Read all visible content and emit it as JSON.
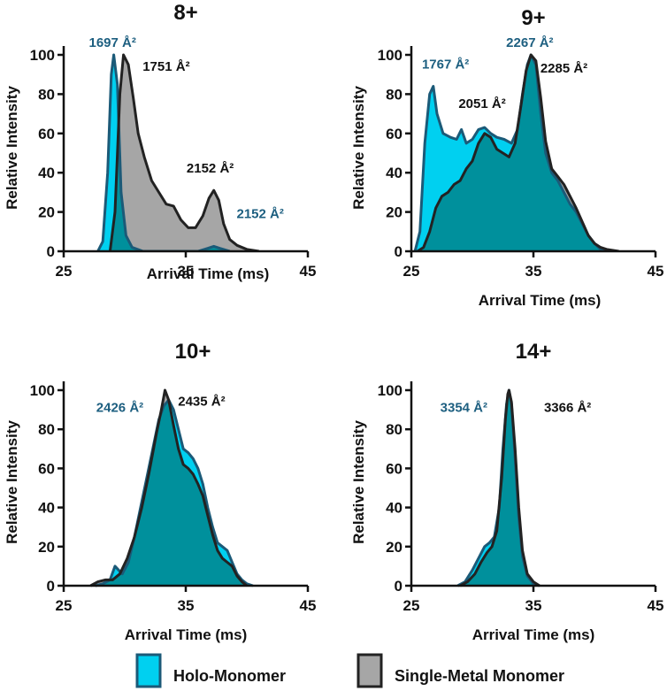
{
  "colors": {
    "holo_fill": "#00d0f0",
    "holo_stroke": "#1b5a78",
    "metal_fill": "#a6a6a6",
    "metal_stroke": "#222222",
    "overlap_fill": "#00909c",
    "holo_text": "#1d5f80",
    "metal_text": "#111111"
  },
  "legend": [
    {
      "label": "Holo-Monomer",
      "series": "holo"
    },
    {
      "label": "Single-Metal Monomer",
      "series": "metal"
    }
  ],
  "chart_data": [
    {
      "type": "area",
      "title": "8+",
      "xlabel": "Arrival Time (ms)",
      "ylabel": "Relative Intensity",
      "xlim": [
        25,
        45
      ],
      "ylim": [
        0,
        100
      ],
      "xticks": [
        25,
        35,
        45
      ],
      "yticks": [
        0,
        20,
        40,
        60,
        80,
        100
      ],
      "series": [
        {
          "name": "Holo-Monomer",
          "key": "holo",
          "points": [
            [
              27.8,
              0
            ],
            [
              28.2,
              5
            ],
            [
              28.6,
              40
            ],
            [
              28.9,
              90
            ],
            [
              29.1,
              100
            ],
            [
              29.4,
              85
            ],
            [
              29.7,
              30
            ],
            [
              30.1,
              8
            ],
            [
              30.6,
              2
            ],
            [
              31.5,
              0
            ],
            [
              36.0,
              0
            ],
            [
              36.8,
              1.5
            ],
            [
              37.3,
              2.5
            ],
            [
              37.8,
              1.5
            ],
            [
              38.6,
              0
            ]
          ]
        },
        {
          "name": "Single-Metal Monomer",
          "key": "metal",
          "points": [
            [
              28.8,
              0
            ],
            [
              29.2,
              20
            ],
            [
              29.6,
              80
            ],
            [
              29.9,
              100
            ],
            [
              30.3,
              95
            ],
            [
              30.7,
              78
            ],
            [
              31.1,
              60
            ],
            [
              31.6,
              48
            ],
            [
              32.2,
              36
            ],
            [
              32.8,
              30
            ],
            [
              33.4,
              24
            ],
            [
              34.0,
              23
            ],
            [
              34.6,
              16
            ],
            [
              35.2,
              12
            ],
            [
              35.8,
              12
            ],
            [
              36.4,
              18
            ],
            [
              36.9,
              27
            ],
            [
              37.3,
              31
            ],
            [
              37.7,
              26
            ],
            [
              38.1,
              14
            ],
            [
              38.6,
              6
            ],
            [
              39.2,
              3
            ],
            [
              40.0,
              1
            ],
            [
              41.0,
              0
            ]
          ]
        }
      ],
      "annotations": [
        {
          "text": "1697 Å²",
          "series": "holo",
          "x": 29.0,
          "y": 104
        },
        {
          "text": "1751 Å²",
          "series": "metal",
          "x": 33.4,
          "y": 92
        },
        {
          "text": "2152 Å²",
          "series": "metal",
          "x": 37.0,
          "y": 40
        },
        {
          "text": "2152 Å²",
          "series": "holo",
          "x": 41.1,
          "y": 17
        }
      ]
    },
    {
      "type": "area",
      "title": "9+",
      "xlabel": "Arrival Time (ms)",
      "ylabel": "Relative Intensity",
      "xlim": [
        25,
        45
      ],
      "ylim": [
        0,
        100
      ],
      "xticks": [
        25,
        35,
        45
      ],
      "yticks": [
        0,
        20,
        40,
        60,
        80,
        100
      ],
      "series": [
        {
          "name": "Holo-Monomer",
          "key": "holo",
          "points": [
            [
              25.3,
              0
            ],
            [
              25.7,
              10
            ],
            [
              26.1,
              55
            ],
            [
              26.5,
              80
            ],
            [
              26.8,
              84
            ],
            [
              27.1,
              70
            ],
            [
              27.6,
              60
            ],
            [
              28.2,
              58
            ],
            [
              28.7,
              57
            ],
            [
              29.1,
              62
            ],
            [
              29.5,
              55
            ],
            [
              30.0,
              57
            ],
            [
              30.5,
              62
            ],
            [
              31.0,
              63
            ],
            [
              31.5,
              60
            ],
            [
              32.0,
              58
            ],
            [
              32.6,
              57
            ],
            [
              33.2,
              55
            ],
            [
              33.7,
              62
            ],
            [
              34.1,
              80
            ],
            [
              34.5,
              95
            ],
            [
              34.8,
              100
            ],
            [
              35.2,
              95
            ],
            [
              35.6,
              70
            ],
            [
              36.0,
              50
            ],
            [
              36.5,
              40
            ],
            [
              37.0,
              36
            ],
            [
              37.5,
              30
            ],
            [
              38.0,
              24
            ],
            [
              38.5,
              20
            ],
            [
              39.0,
              14
            ],
            [
              39.5,
              8
            ],
            [
              40.0,
              4
            ],
            [
              40.5,
              1
            ],
            [
              41.0,
              0
            ]
          ]
        },
        {
          "name": "Single-Metal Monomer",
          "key": "metal",
          "points": [
            [
              25.5,
              0
            ],
            [
              26.0,
              2
            ],
            [
              26.5,
              10
            ],
            [
              27.0,
              22
            ],
            [
              27.5,
              28
            ],
            [
              28.0,
              30
            ],
            [
              28.5,
              34
            ],
            [
              29.0,
              36
            ],
            [
              29.5,
              42
            ],
            [
              30.0,
              46
            ],
            [
              30.5,
              55
            ],
            [
              31.0,
              60
            ],
            [
              31.5,
              58
            ],
            [
              32.0,
              52
            ],
            [
              32.5,
              50
            ],
            [
              33.0,
              48
            ],
            [
              33.5,
              55
            ],
            [
              34.0,
              75
            ],
            [
              34.4,
              92
            ],
            [
              34.8,
              100
            ],
            [
              35.2,
              97
            ],
            [
              35.6,
              78
            ],
            [
              36.0,
              56
            ],
            [
              36.5,
              42
            ],
            [
              37.0,
              38
            ],
            [
              37.5,
              34
            ],
            [
              38.0,
              28
            ],
            [
              38.5,
              22
            ],
            [
              39.0,
              15
            ],
            [
              39.5,
              8
            ],
            [
              40.0,
              4
            ],
            [
              40.5,
              2
            ],
            [
              41.0,
              1
            ],
            [
              42.0,
              0
            ]
          ]
        }
      ],
      "annotations": [
        {
          "text": "1767 Å²",
          "series": "holo",
          "x": 27.8,
          "y": 93
        },
        {
          "text": "2267 Å²",
          "series": "holo",
          "x": 34.7,
          "y": 104
        },
        {
          "text": "2285 Å²",
          "series": "metal",
          "x": 37.5,
          "y": 91
        },
        {
          "text": "2051 Å²",
          "series": "metal",
          "x": 30.8,
          "y": 73
        }
      ]
    },
    {
      "type": "area",
      "title": "10+",
      "xlabel": "Arrival Time (ms)",
      "ylabel": "Relative Intensity",
      "xlim": [
        25,
        45
      ],
      "ylim": [
        0,
        100
      ],
      "xticks": [
        25,
        35,
        45
      ],
      "yticks": [
        0,
        20,
        40,
        60,
        80,
        100
      ],
      "series": [
        {
          "name": "Holo-Monomer",
          "key": "holo",
          "points": [
            [
              27.6,
              0
            ],
            [
              28.2,
              1
            ],
            [
              28.8,
              3
            ],
            [
              29.2,
              10
            ],
            [
              29.5,
              8
            ],
            [
              29.8,
              6
            ],
            [
              30.3,
              12
            ],
            [
              30.8,
              25
            ],
            [
              31.3,
              40
            ],
            [
              31.8,
              55
            ],
            [
              32.3,
              70
            ],
            [
              32.8,
              85
            ],
            [
              33.2,
              92
            ],
            [
              33.6,
              95
            ],
            [
              34.0,
              90
            ],
            [
              34.4,
              80
            ],
            [
              34.8,
              70
            ],
            [
              35.2,
              68
            ],
            [
              35.6,
              65
            ],
            [
              36.0,
              60
            ],
            [
              36.4,
              52
            ],
            [
              36.8,
              40
            ],
            [
              37.2,
              30
            ],
            [
              37.6,
              22
            ],
            [
              38.0,
              20
            ],
            [
              38.4,
              18
            ],
            [
              38.8,
              12
            ],
            [
              39.2,
              6
            ],
            [
              39.6,
              3
            ],
            [
              40.0,
              1
            ],
            [
              40.5,
              0
            ]
          ]
        },
        {
          "name": "Single-Metal Monomer",
          "key": "metal",
          "points": [
            [
              27.2,
              0
            ],
            [
              27.8,
              2
            ],
            [
              28.4,
              3
            ],
            [
              29.0,
              3
            ],
            [
              29.6,
              6
            ],
            [
              30.2,
              14
            ],
            [
              30.8,
              25
            ],
            [
              31.4,
              40
            ],
            [
              32.0,
              58
            ],
            [
              32.6,
              78
            ],
            [
              33.0,
              90
            ],
            [
              33.3,
              100
            ],
            [
              33.6,
              95
            ],
            [
              34.0,
              82
            ],
            [
              34.4,
              70
            ],
            [
              34.8,
              62
            ],
            [
              35.2,
              60
            ],
            [
              35.6,
              57
            ],
            [
              36.0,
              52
            ],
            [
              36.4,
              46
            ],
            [
              36.8,
              36
            ],
            [
              37.2,
              26
            ],
            [
              37.6,
              18
            ],
            [
              38.0,
              14
            ],
            [
              38.4,
              12
            ],
            [
              38.8,
              10
            ],
            [
              39.2,
              5
            ],
            [
              39.6,
              2
            ],
            [
              40.0,
              0
            ]
          ]
        }
      ],
      "annotations": [
        {
          "text": "2426 Å²",
          "series": "holo",
          "x": 29.6,
          "y": 89
        },
        {
          "text": "2435 Å²",
          "series": "metal",
          "x": 36.3,
          "y": 92
        }
      ]
    },
    {
      "type": "area",
      "title": "14+",
      "xlabel": "Arrival Time (ms)",
      "ylabel": "Relative Intensity",
      "xlim": [
        25,
        45
      ],
      "ylim": [
        0,
        100
      ],
      "xticks": [
        25,
        35,
        45
      ],
      "yticks": [
        0,
        20,
        40,
        60,
        80,
        100
      ],
      "series": [
        {
          "name": "Holo-Monomer",
          "key": "holo",
          "points": [
            [
              28.8,
              0
            ],
            [
              29.4,
              2
            ],
            [
              30.0,
              8
            ],
            [
              30.5,
              14
            ],
            [
              31.0,
              20
            ],
            [
              31.4,
              22
            ],
            [
              31.8,
              25
            ],
            [
              32.2,
              40
            ],
            [
              32.5,
              70
            ],
            [
              32.8,
              93
            ],
            [
              33.0,
              100
            ],
            [
              33.2,
              93
            ],
            [
              33.5,
              65
            ],
            [
              33.8,
              35
            ],
            [
              34.1,
              15
            ],
            [
              34.5,
              5
            ],
            [
              35.0,
              1
            ],
            [
              35.5,
              0
            ]
          ]
        },
        {
          "name": "Single-Metal Monomer",
          "key": "metal",
          "points": [
            [
              29.0,
              0
            ],
            [
              29.6,
              2
            ],
            [
              30.2,
              6
            ],
            [
              30.7,
              12
            ],
            [
              31.2,
              17
            ],
            [
              31.6,
              20
            ],
            [
              32.0,
              28
            ],
            [
              32.4,
              55
            ],
            [
              32.7,
              85
            ],
            [
              32.9,
              98
            ],
            [
              33.0,
              100
            ],
            [
              33.2,
              94
            ],
            [
              33.5,
              70
            ],
            [
              33.8,
              40
            ],
            [
              34.1,
              18
            ],
            [
              34.5,
              6
            ],
            [
              35.0,
              2
            ],
            [
              35.5,
              0
            ]
          ]
        }
      ],
      "annotations": [
        {
          "text": "3354 Å²",
          "series": "holo",
          "x": 29.3,
          "y": 89
        },
        {
          "text": "3366 Å²",
          "series": "metal",
          "x": 37.8,
          "y": 89
        }
      ]
    }
  ]
}
